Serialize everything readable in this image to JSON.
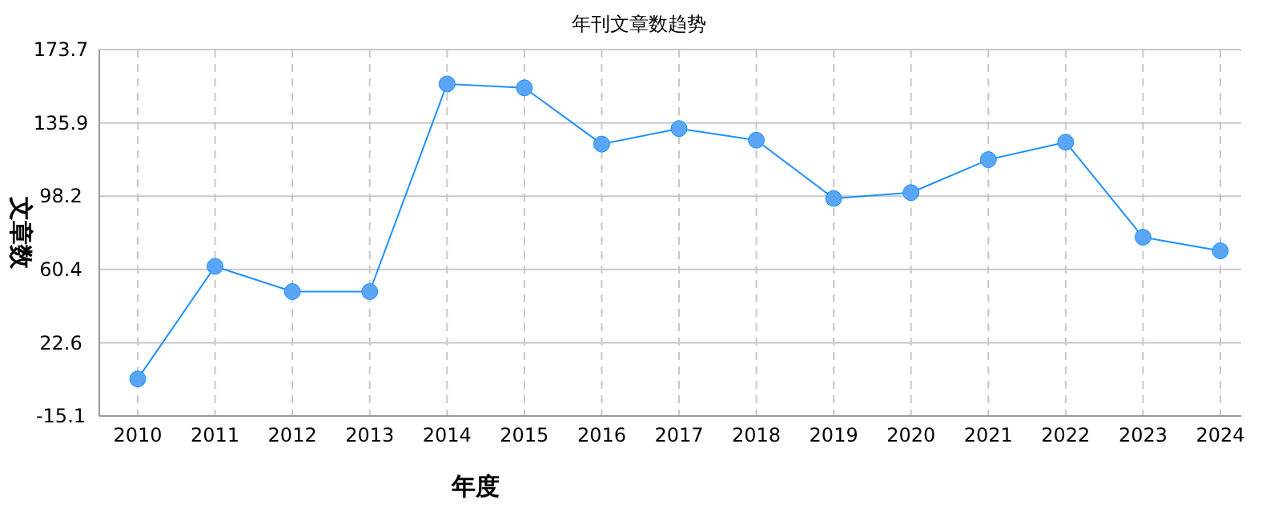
{
  "chart_data": {
    "type": "line",
    "title": "年刊文章数趋势",
    "xlabel": "年度",
    "ylabel": "文章数",
    "categories": [
      "2010",
      "2011",
      "2012",
      "2013",
      "2014",
      "2015",
      "2016",
      "2017",
      "2018",
      "2019",
      "2020",
      "2021",
      "2022",
      "2023",
      "2024"
    ],
    "series": [
      {
        "color": "#1e90ff",
        "values": [
          4,
          62,
          49,
          49,
          156,
          154,
          125,
          133,
          127,
          97,
          100,
          117,
          126,
          77,
          70
        ]
      }
    ],
    "ylim": [
      -15.1,
      173.7
    ],
    "yticks": [
      -15.1,
      22.6,
      60.4,
      98.2,
      135.9,
      173.7
    ],
    "grid": true,
    "marker": "circle",
    "line_style": "solid"
  }
}
